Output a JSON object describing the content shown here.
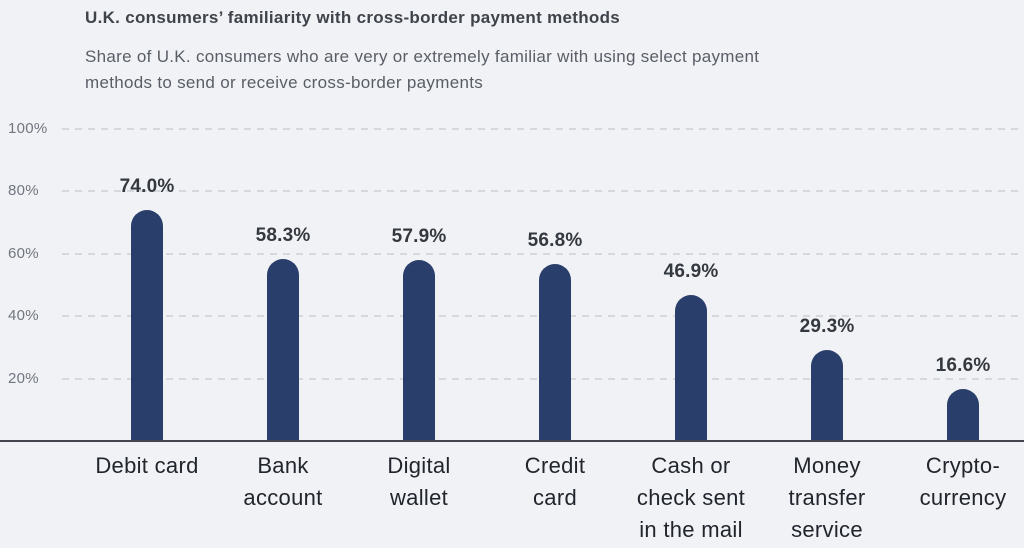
{
  "page": {
    "background_color": "#f1f2f6"
  },
  "header": {
    "title": "U.K. consumers’ familiarity with cross-border payment methods",
    "subtitle_lines": [
      "Share of U.K. consumers who are very or extremely familiar with using select payment",
      "methods to send or receive cross-border payments"
    ]
  },
  "chart_data": {
    "type": "bar",
    "title": "U.K. consumers’ familiarity with cross-border payment methods",
    "subtitle": "Share of U.K. consumers who are very or extremely familiar with using select payment methods to send or receive cross-border payments",
    "categories": [
      "Debit card",
      "Bank account",
      "Digital wallet",
      "Credit card",
      "Cash or check sent in the mail",
      "Money transfer service",
      "Crypto-currency"
    ],
    "category_lines": [
      [
        "Debit card"
      ],
      [
        "Bank",
        "account"
      ],
      [
        "Digital",
        "wallet"
      ],
      [
        "Credit",
        "card"
      ],
      [
        "Cash or",
        "check sent",
        "in the mail"
      ],
      [
        "Money",
        "transfer",
        "service"
      ],
      [
        "Crypto-",
        "currency"
      ]
    ],
    "values": [
      74.0,
      58.3,
      57.9,
      56.8,
      46.9,
      29.3,
      16.6
    ],
    "value_labels": [
      "74.0%",
      "58.3%",
      "57.9%",
      "56.8%",
      "46.9%",
      "29.3%",
      "16.6%"
    ],
    "y_ticks": [
      "100%",
      "80%",
      "60%",
      "40%",
      "20%"
    ],
    "y_tick_values": [
      100,
      80,
      60,
      40,
      20
    ],
    "ylim": [
      0,
      100
    ],
    "xlabel": "",
    "ylabel": "",
    "grid": "horizontal-dashed",
    "legend": "none",
    "bar_color": "#2a3e6b",
    "gridline_color": "#d6d8dd",
    "axis_line_color": "#43464d",
    "title_color": "#3f444b",
    "subtitle_color": "#595e66",
    "value_label_color": "#34383f",
    "category_label_color": "#21252c",
    "y_tick_color": "#71767f"
  }
}
